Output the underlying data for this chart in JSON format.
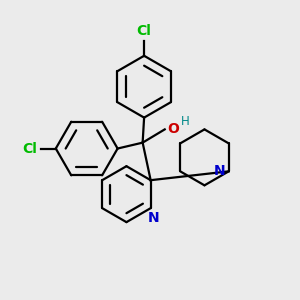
{
  "background_color": "#ebebeb",
  "atom_colors": {
    "Cl": "#00bb00",
    "O": "#cc0000",
    "N": "#0000cc",
    "H": "#008888",
    "C": "#000000"
  },
  "bond_color": "#000000",
  "bond_width": 1.6,
  "figsize": [
    3.0,
    3.0
  ],
  "dpi": 100
}
